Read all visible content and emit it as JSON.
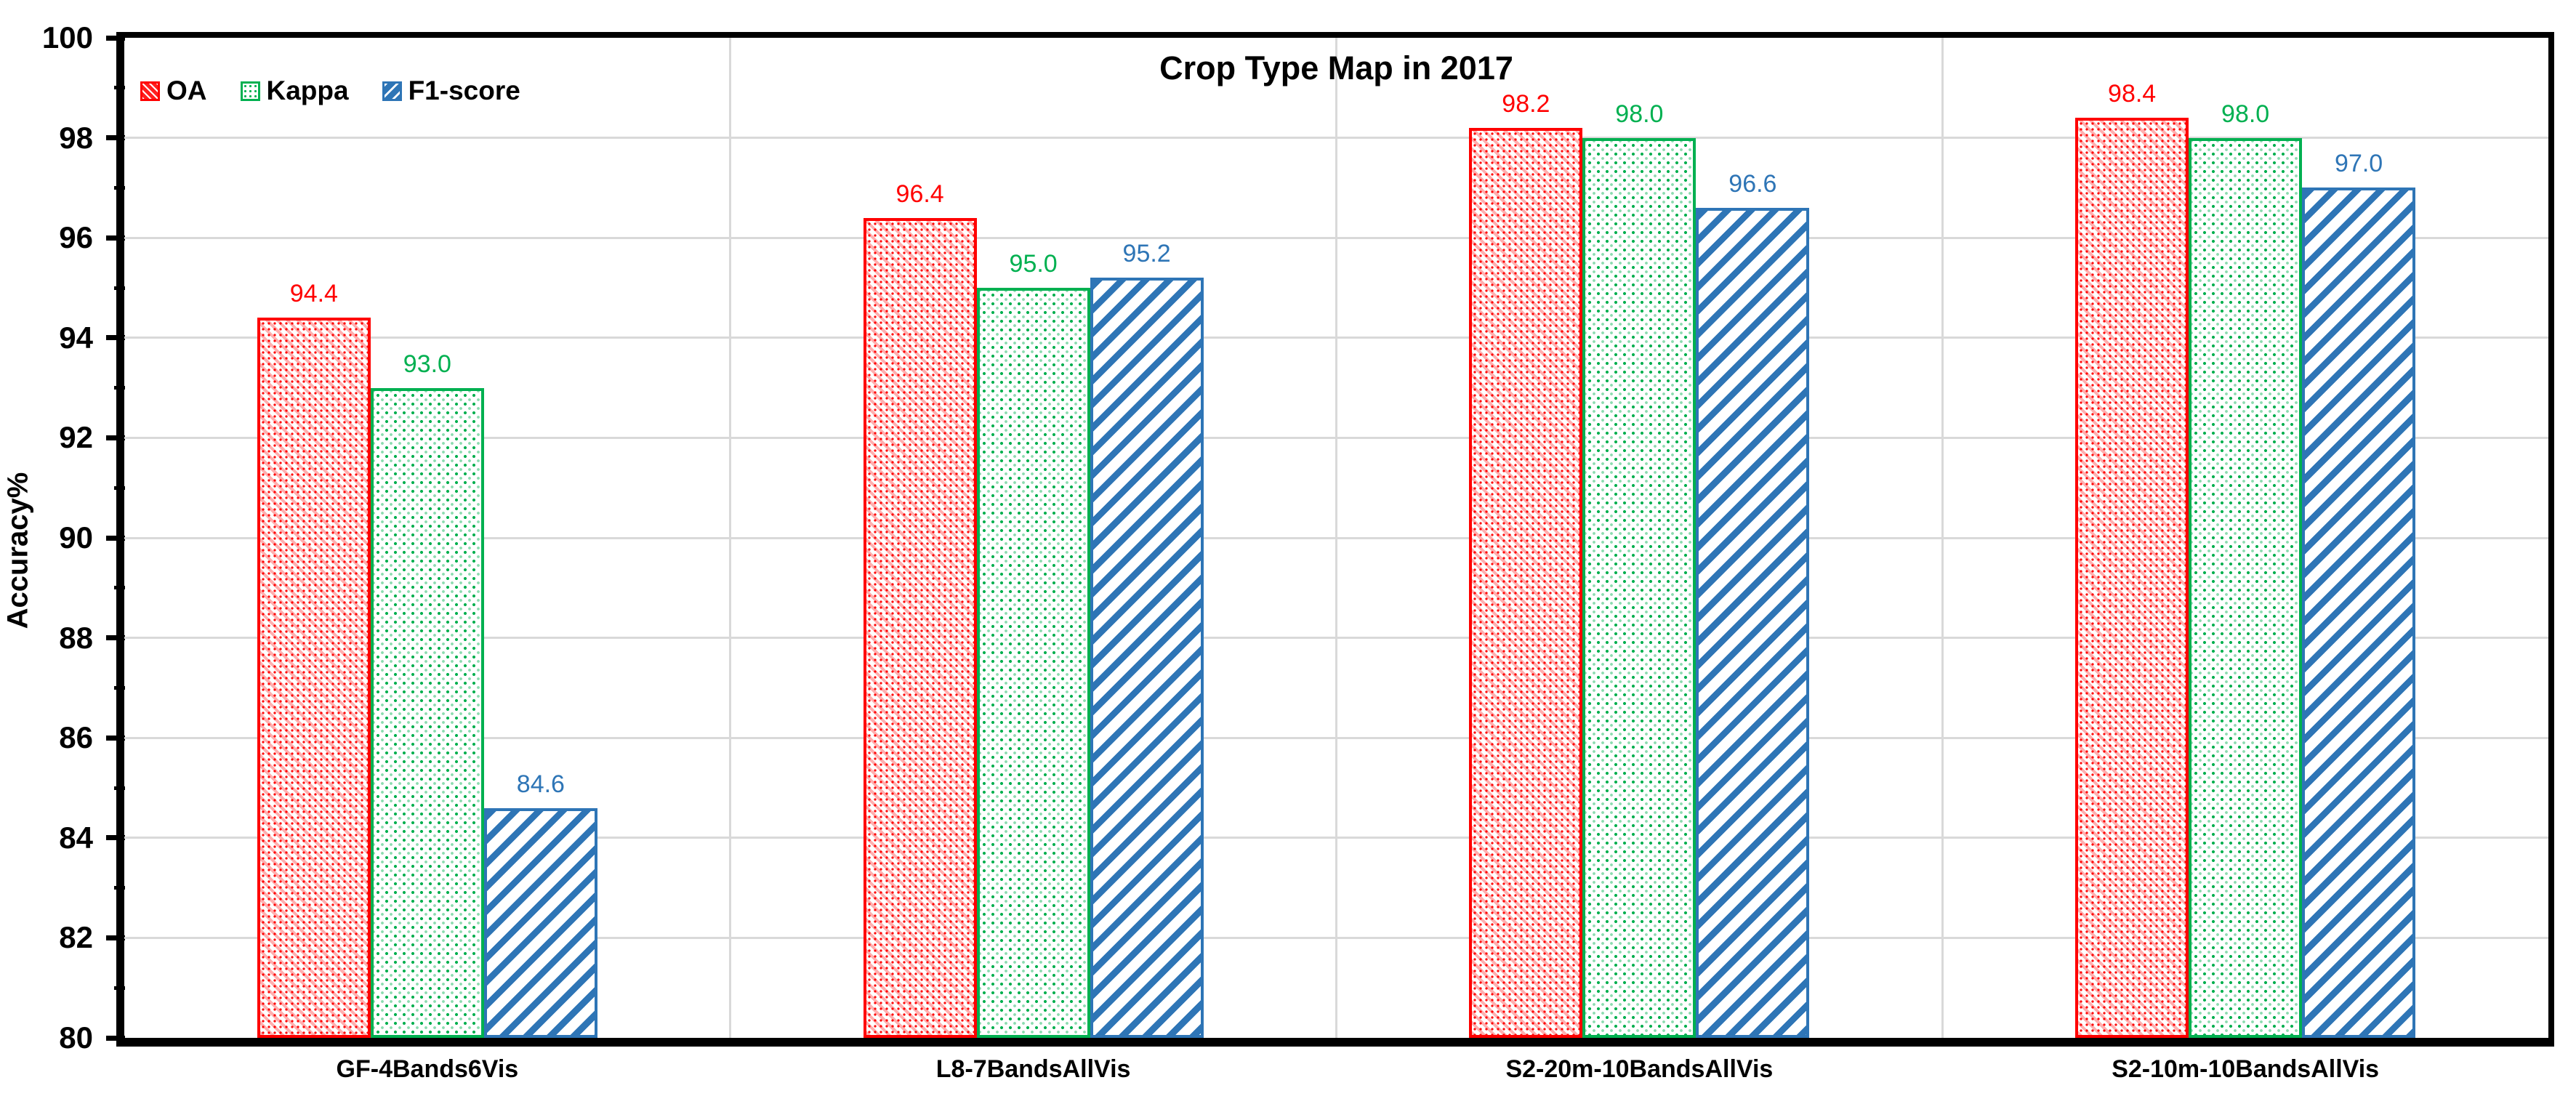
{
  "chart_data": {
    "type": "bar",
    "title": "Crop Type Map in 2017",
    "xlabel": "",
    "ylabel": "Accuracy%",
    "ylim": [
      80,
      100
    ],
    "yticks_major": [
      80,
      82,
      84,
      86,
      88,
      90,
      92,
      94,
      96,
      98,
      100
    ],
    "yticks_minor": [
      81,
      83,
      85,
      87,
      89,
      91,
      93,
      95,
      97,
      99
    ],
    "grid": "horizontal gridlines at major ticks; vertical light separators between category groups",
    "legend_position": "top-left inside plot",
    "value_labels_decimals": 1,
    "categories": [
      "GF-4Bands6Vis",
      "L8-7BandsAllVis",
      "S2-20m-10BandsAllVis",
      "S2-10m-10BandsAllVis"
    ],
    "series": [
      {
        "name": "OA",
        "color": "#FF0000",
        "pattern": "dashed-diagonal-down-hatch",
        "values": [
          94.4,
          96.4,
          98.2,
          98.4
        ]
      },
      {
        "name": "Kappa",
        "color": "#00B050",
        "pattern": "dot-grid",
        "values": [
          93.0,
          95.0,
          98.0,
          98.0
        ]
      },
      {
        "name": "F1-score",
        "color": "#2E75B6",
        "pattern": "diagonal-up-stripes",
        "values": [
          84.6,
          95.2,
          96.6,
          97.0
        ]
      }
    ],
    "colors": {
      "gridline": "#D9D9D9",
      "axis": "#000000",
      "background": "#FFFFFF"
    }
  }
}
